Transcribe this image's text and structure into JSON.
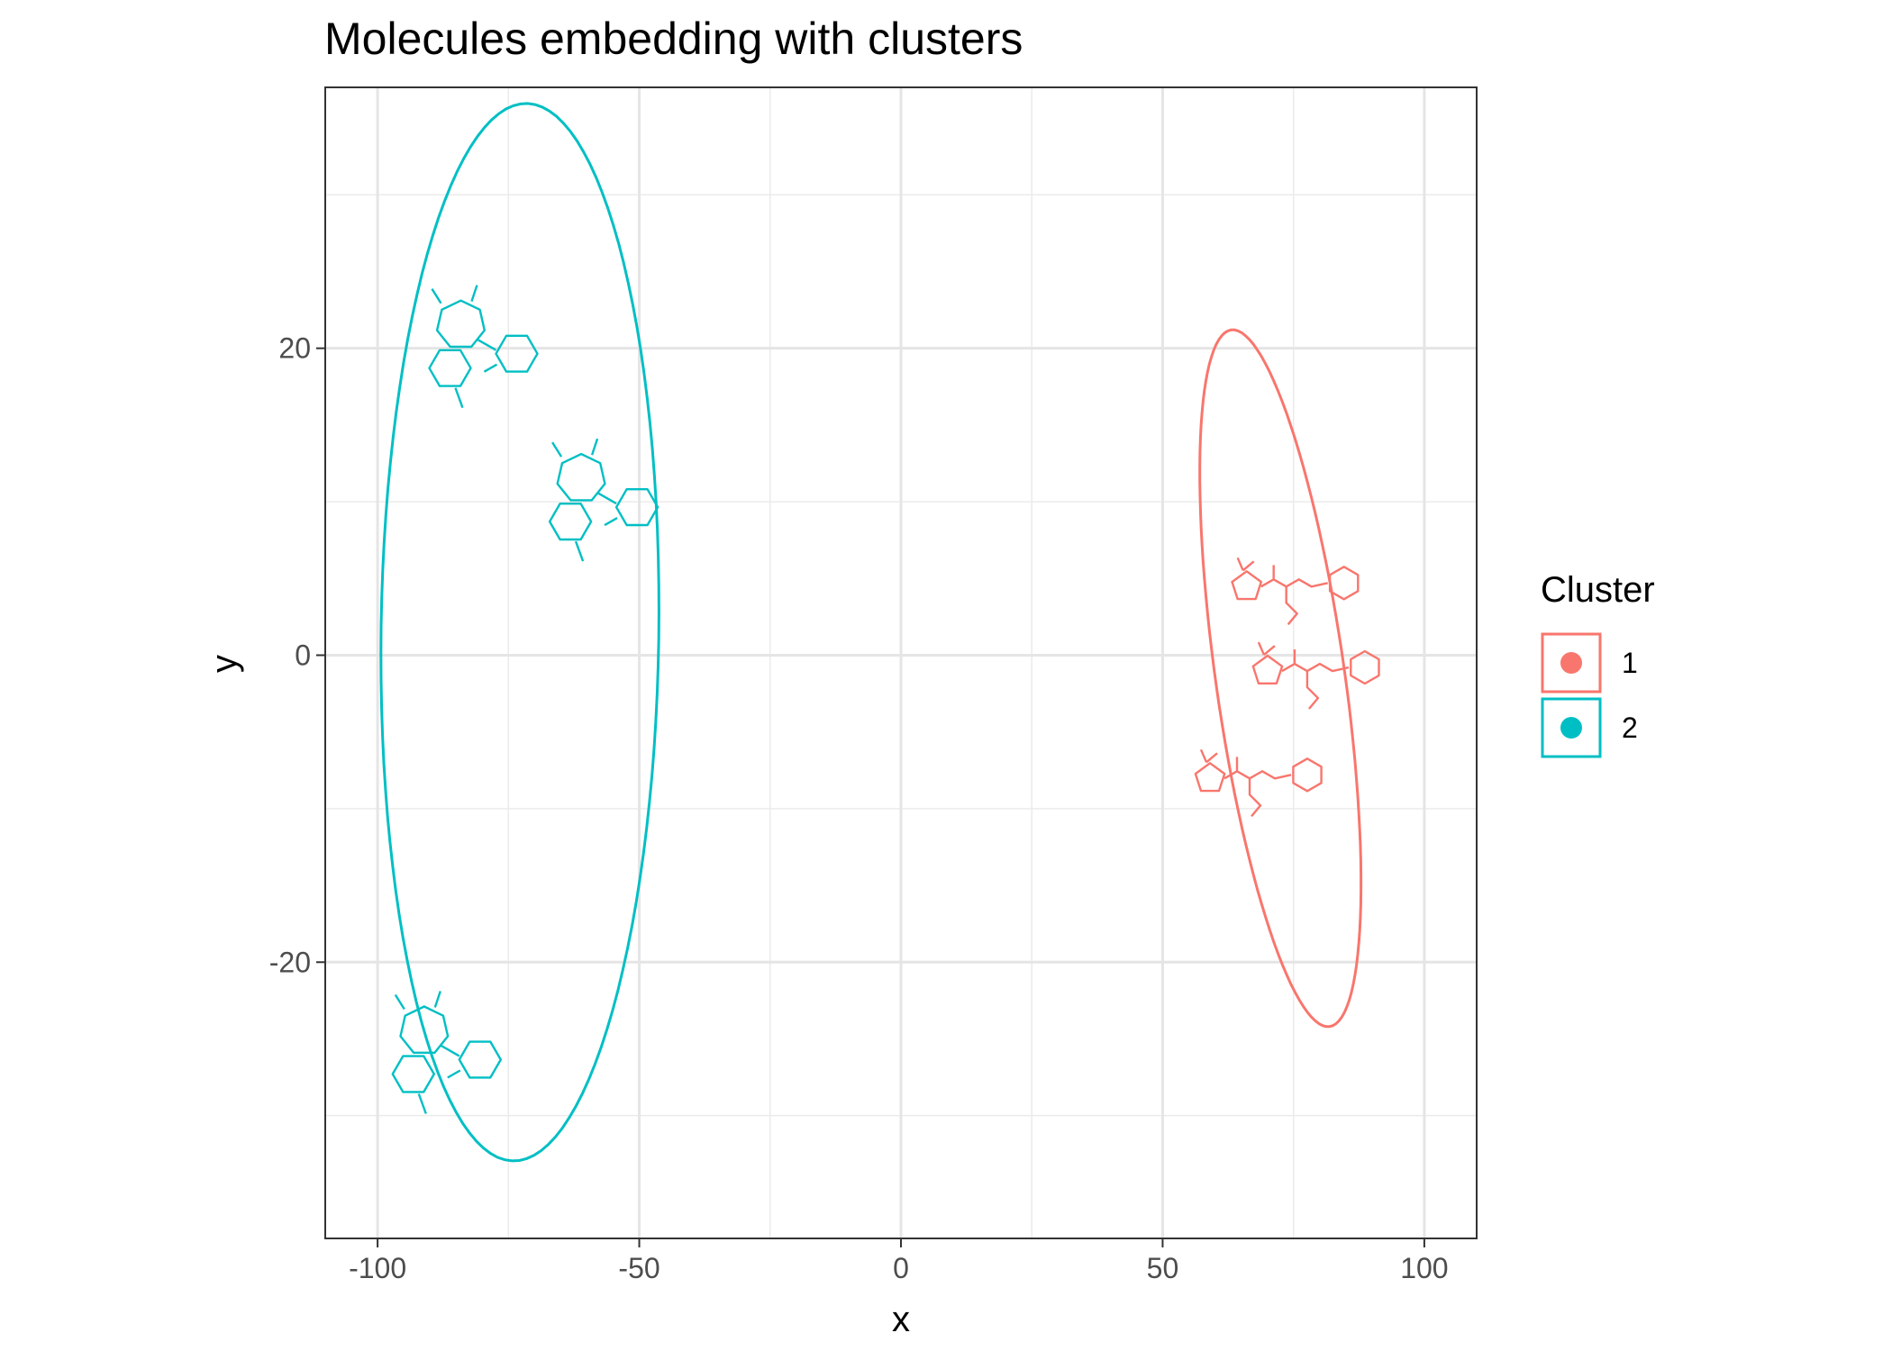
{
  "chart_data": {
    "type": "scatter",
    "title": "Molecules embedding with clusters",
    "xlabel": "x",
    "ylabel": "y",
    "xlim": [
      -110,
      110
    ],
    "ylim": [
      -38,
      37
    ],
    "x_ticks": [
      -100,
      -50,
      0,
      50,
      100
    ],
    "x_tick_labels": [
      "-100",
      "-50",
      "0",
      "50",
      "100"
    ],
    "y_ticks": [
      -20,
      0,
      20
    ],
    "y_tick_labels": [
      "-20",
      "0",
      "20"
    ],
    "x_minor_ticks": [
      -75,
      -25,
      25,
      75
    ],
    "y_minor_ticks": [
      -30,
      -10,
      10,
      30
    ],
    "grid": true,
    "legend": {
      "title": "Cluster",
      "position": "right"
    },
    "series": [
      {
        "name": "1",
        "color": "#F8766D",
        "marker": "molecule-structure",
        "points": [
          {
            "x": 75,
            "y": 4
          },
          {
            "x": 79,
            "y": -1.5
          },
          {
            "x": 68,
            "y": -8.5
          }
        ],
        "ellipse": {
          "cx": 72.5,
          "cy": -1.5,
          "rx": 25,
          "ry": 11.3,
          "angle_deg": -62
        }
      },
      {
        "name": "2",
        "color": "#00BFC4",
        "marker": "molecule-structure",
        "points": [
          {
            "x": -81,
            "y": 20
          },
          {
            "x": -58,
            "y": 10
          },
          {
            "x": -88,
            "y": -26
          }
        ],
        "ellipse": {
          "cx": -72.8,
          "cy": 1.5,
          "rx": 34.5,
          "ry": 26.5,
          "angle_deg": 85.2
        }
      }
    ]
  }
}
